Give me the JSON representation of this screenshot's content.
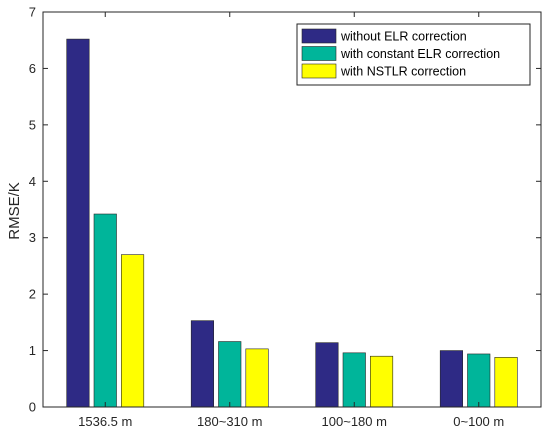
{
  "chart_data": {
    "type": "bar",
    "categories": [
      "1536.5 m",
      "180~310 m",
      "100~180 m",
      "0~100 m"
    ],
    "series": [
      {
        "name": "without ELR correction",
        "color": "#2e2a85",
        "values": [
          6.52,
          1.53,
          1.14,
          1.0
        ]
      },
      {
        "name": "with constant ELR correction",
        "color": "#00b59a",
        "values": [
          3.42,
          1.16,
          0.96,
          0.94
        ]
      },
      {
        "name": "with NSTLR correction",
        "color": "#ffff00",
        "values": [
          2.7,
          1.03,
          0.9,
          0.88
        ]
      }
    ],
    "title": "",
    "xlabel": "",
    "ylabel": "RMSE/K",
    "ylim": [
      0,
      7
    ],
    "yticks": [
      0,
      1,
      2,
      3,
      4,
      5,
      6,
      7
    ],
    "grid": false,
    "legend_position": "top-right"
  }
}
